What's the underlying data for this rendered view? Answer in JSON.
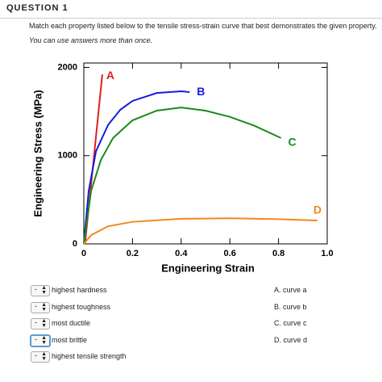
{
  "question": {
    "heading": "QUESTION 1",
    "prompt": "Match each property listed below to the tensile stress-strain curve that best demonstrates the given property.",
    "note": "You can use answers more than once."
  },
  "chart_data": {
    "type": "line",
    "xlabel": "Engineering Strain",
    "ylabel": "Engineering Stress (MPa)",
    "xlim": [
      0,
      1
    ],
    "ylim": [
      0,
      2050
    ],
    "xticks": [
      0,
      0.2,
      0.4,
      0.6,
      0.8,
      {
        "value": 1,
        "label": "1.0"
      }
    ],
    "yticks": [
      0,
      1000,
      2000
    ],
    "series": [
      {
        "name": "A",
        "color": "#e0201b",
        "x": [
          0.005,
          0.076
        ],
        "values": [
          0,
          1920
        ]
      },
      {
        "name": "B",
        "color": "#1a1adb",
        "x": [
          0,
          0.02,
          0.05,
          0.1,
          0.15,
          0.2,
          0.3,
          0.4,
          0.435
        ],
        "values": [
          0,
          600,
          1050,
          1350,
          1520,
          1620,
          1710,
          1730,
          1720
        ]
      },
      {
        "name": "C",
        "color": "#1a8a1a",
        "x": [
          0,
          0.03,
          0.07,
          0.12,
          0.2,
          0.3,
          0.4,
          0.5,
          0.6,
          0.7,
          0.81
        ],
        "values": [
          0,
          600,
          950,
          1200,
          1400,
          1510,
          1545,
          1510,
          1440,
          1340,
          1200
        ]
      },
      {
        "name": "D",
        "color": "#f08a1c",
        "x": [
          0,
          0.03,
          0.1,
          0.2,
          0.4,
          0.6,
          0.8,
          0.96
        ],
        "values": [
          0,
          100,
          200,
          250,
          285,
          290,
          280,
          265
        ]
      }
    ]
  },
  "items": [
    {
      "selected": "-",
      "label": "highest hardness"
    },
    {
      "selected": "-",
      "label": "highest toughness"
    },
    {
      "selected": "-",
      "label": "most ductile"
    },
    {
      "selected": "-",
      "label": "most brittle"
    },
    {
      "selected": "-",
      "label": "highest tensile strength"
    }
  ],
  "options": [
    "A. curve a",
    "B. curve b",
    "C. curve c",
    "D. curve d"
  ]
}
